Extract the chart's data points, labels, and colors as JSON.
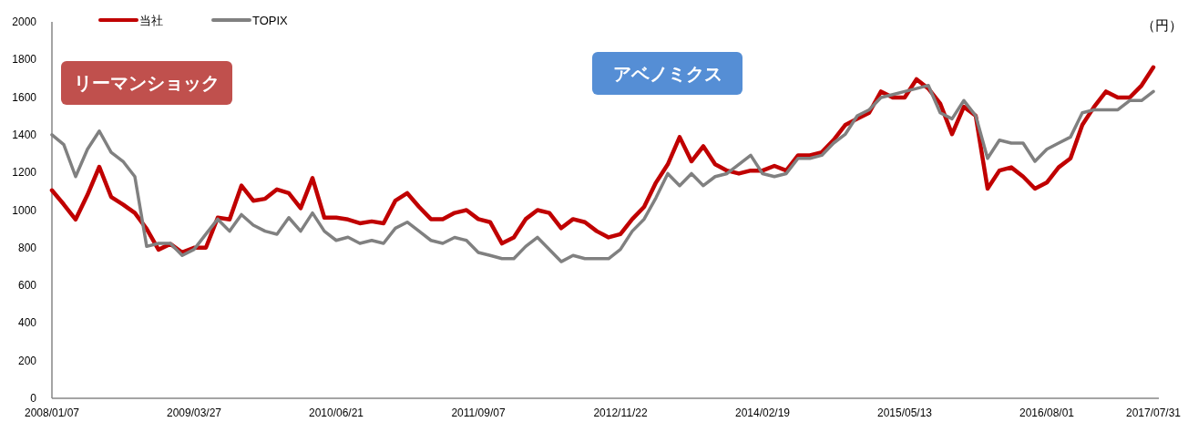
{
  "chart_data": {
    "type": "line",
    "ylabel": "（円）",
    "categories": [
      "2008/01/07",
      null,
      null,
      null,
      null,
      null,
      null,
      null,
      null,
      null,
      null,
      null,
      "2009/03/27",
      null,
      null,
      null,
      null,
      null,
      null,
      null,
      null,
      null,
      null,
      null,
      "2010/06/21",
      null,
      null,
      null,
      null,
      null,
      null,
      null,
      null,
      null,
      null,
      null,
      "2011/09/07",
      null,
      null,
      null,
      null,
      null,
      null,
      null,
      null,
      null,
      null,
      null,
      "2012/11/22",
      null,
      null,
      null,
      null,
      null,
      null,
      null,
      null,
      null,
      null,
      null,
      "2014/02/19",
      null,
      null,
      null,
      null,
      null,
      null,
      null,
      null,
      null,
      null,
      null,
      "2015/05/13",
      null,
      null,
      null,
      null,
      null,
      null,
      null,
      null,
      null,
      null,
      null,
      "2016/08/01",
      null,
      null,
      null,
      null,
      null,
      null,
      null,
      null,
      "2017/07/31"
    ],
    "series": [
      {
        "name": "当社",
        "color": "#c00000",
        "values": [
          1105,
          1030,
          950,
          1081,
          1230,
          1070,
          1030,
          985,
          900,
          790,
          820,
          775,
          800,
          800,
          960,
          950,
          1130,
          1050,
          1060,
          1110,
          1090,
          1010,
          1170,
          960,
          960,
          950,
          930,
          940,
          930,
          1050,
          1090,
          1017,
          952,
          952,
          985,
          1000,
          952,
          936,
          823,
          855,
          952,
          1000,
          985,
          904,
          952,
          936,
          888,
          855,
          872,
          952,
          1017,
          1146,
          1243,
          1388,
          1259,
          1339,
          1243,
          1210,
          1194,
          1210,
          1210,
          1235,
          1210,
          1291,
          1291,
          1307,
          1372,
          1453,
          1485,
          1517,
          1630,
          1598,
          1598,
          1695,
          1646,
          1566,
          1404,
          1549,
          1501,
          1114,
          1210,
          1227,
          1178,
          1114,
          1146,
          1227,
          1275,
          1453,
          1549,
          1630,
          1598,
          1598,
          1662,
          1759
        ]
      },
      {
        "name": "TOPIX",
        "color": "#808080",
        "values": [
          1400,
          1348,
          1178,
          1323,
          1420,
          1307,
          1259,
          1178,
          807,
          823,
          823,
          759,
          791,
          872,
          952,
          888,
          976,
          920,
          888,
          872,
          960,
          888,
          985,
          888,
          839,
          856,
          823,
          839,
          823,
          904,
          936,
          888,
          839,
          823,
          855,
          839,
          775,
          759,
          742,
          742,
          807,
          855,
          791,
          726,
          759,
          742,
          742,
          742,
          791,
          888,
          952,
          1065,
          1194,
          1130,
          1194,
          1130,
          1178,
          1194,
          1243,
          1291,
          1194,
          1178,
          1194,
          1275,
          1275,
          1291,
          1356,
          1404,
          1501,
          1533,
          1598,
          1614,
          1630,
          1646,
          1662,
          1517,
          1485,
          1582,
          1501,
          1275,
          1372,
          1356,
          1356,
          1259,
          1323,
          1356,
          1388,
          1517,
          1533,
          1533,
          1533,
          1582,
          1582,
          1630
        ]
      }
    ],
    "ylim": [
      0,
      2000
    ],
    "yticks": [
      0,
      200,
      400,
      600,
      800,
      1000,
      1200,
      1400,
      1600,
      1800,
      2000
    ],
    "legend": "top",
    "grid": false,
    "annotations": [
      "リーマンショック",
      "アベノミクス"
    ]
  }
}
